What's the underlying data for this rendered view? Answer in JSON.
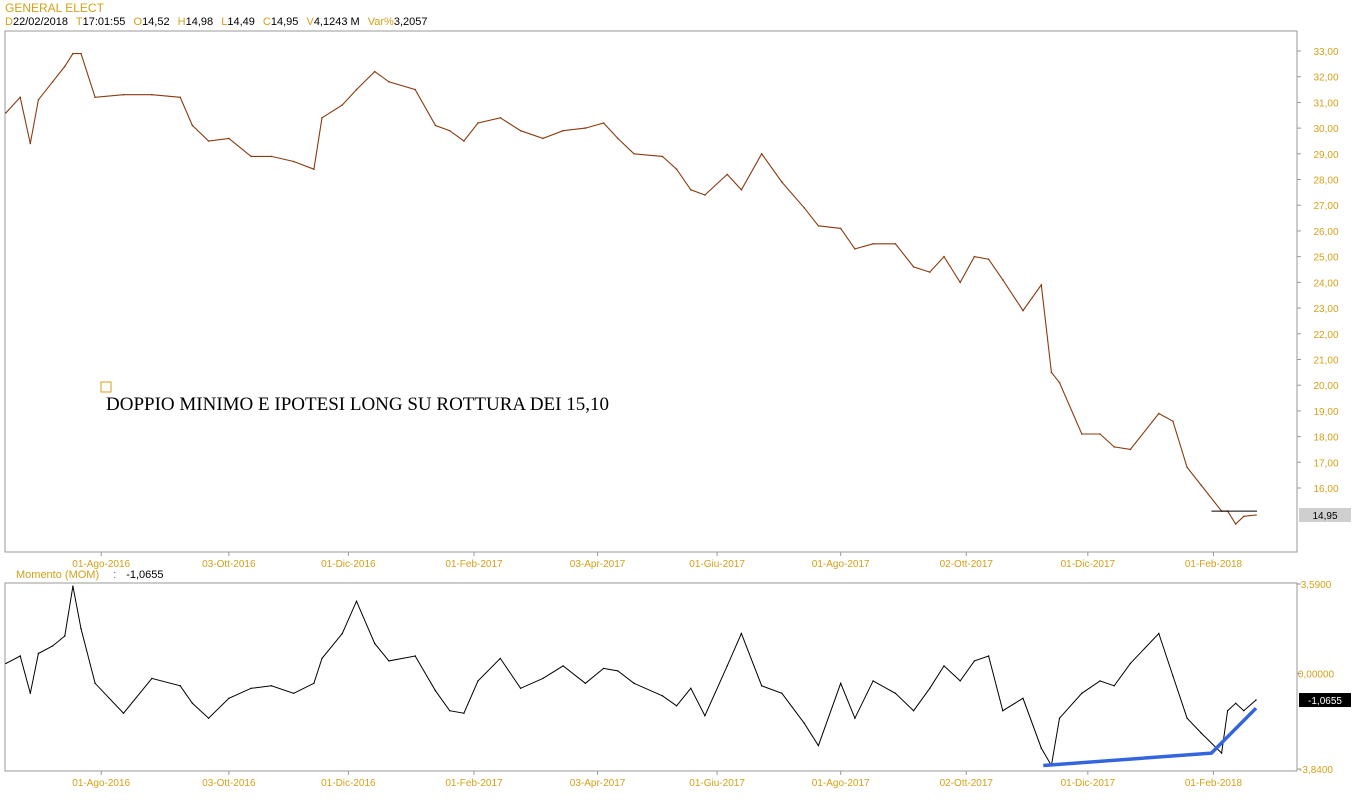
{
  "header": {
    "symbol": "GENERAL ELECT",
    "fields": [
      {
        "key": "D",
        "value": "22/02/2018"
      },
      {
        "key": "T",
        "value": "17:01:55"
      },
      {
        "key": "O",
        "value": "14,52"
      },
      {
        "key": "H",
        "value": "14,98"
      },
      {
        "key": "L",
        "value": "14,49"
      },
      {
        "key": "C",
        "value": "14,95"
      },
      {
        "key": "V",
        "value": "4,1243 M"
      },
      {
        "key": "Var%",
        "value": "3,2057"
      }
    ]
  },
  "colors": {
    "price_line": "#8b3a0f",
    "momentum_line": "#000000",
    "trendline": "#3366dd",
    "axis_label": "#d4a017",
    "frame": "#999999"
  },
  "annotation": {
    "text": "DOPPIO MINIMO E IPOTESI LONG SU ROTTURA DEI 15,10"
  },
  "momentum_header": {
    "label": "Momento (MOM)",
    "separator": ":",
    "value": "-1,0655"
  },
  "chart_data": [
    {
      "type": "line",
      "title": "GENERAL ELECT",
      "ylim": [
        14,
        33.6
      ],
      "y_axis_side": "right",
      "y_tick_labels": [
        "16,00",
        "17,00",
        "18,00",
        "19,00",
        "20,00",
        "21,00",
        "22,00",
        "23,00",
        "24,00",
        "25,00",
        "26,00",
        "27,00",
        "28,00",
        "29,00",
        "30,00",
        "31,00",
        "32,00",
        "33,00"
      ],
      "x_tick_labels": [
        "01-Ago-2016",
        "03-Ott-2016",
        "01-Dic-2016",
        "01-Feb-2017",
        "03-Apr-2017",
        "01-Giu-2017",
        "01-Ago-2017",
        "02-Ott-2017",
        "01-Dic-2017",
        "01-Feb-2018"
      ],
      "last_value_label": "14,95",
      "resistance_level": 15.1,
      "series": [
        {
          "x": [
            "2016-06-15",
            "2016-06-22",
            "2016-06-27",
            "2016-07-01",
            "2016-07-08",
            "2016-07-14",
            "2016-07-18",
            "2016-07-22",
            "2016-07-29",
            "2016-08-12",
            "2016-08-26",
            "2016-09-09",
            "2016-09-15",
            "2016-09-23",
            "2016-10-03",
            "2016-10-14",
            "2016-10-24",
            "2016-11-04",
            "2016-11-14",
            "2016-11-18",
            "2016-11-28",
            "2016-12-05",
            "2016-12-14",
            "2016-12-21",
            "2017-01-03",
            "2017-01-13",
            "2017-01-20",
            "2017-01-27",
            "2017-02-03",
            "2017-02-14",
            "2017-02-24",
            "2017-03-07",
            "2017-03-17",
            "2017-03-28",
            "2017-04-06",
            "2017-04-13",
            "2017-04-21",
            "2017-05-05",
            "2017-05-12",
            "2017-05-19",
            "2017-05-26",
            "2017-06-06",
            "2017-06-13",
            "2017-06-23",
            "2017-07-03",
            "2017-07-14",
            "2017-07-21",
            "2017-08-01",
            "2017-08-08",
            "2017-08-17",
            "2017-08-28",
            "2017-09-06",
            "2017-09-14",
            "2017-09-21",
            "2017-09-29",
            "2017-10-06",
            "2017-10-13",
            "2017-10-20",
            "2017-10-30",
            "2017-11-08",
            "2017-11-13",
            "2017-11-17",
            "2017-11-28",
            "2017-12-07",
            "2017-12-14",
            "2017-12-22",
            "2018-01-05",
            "2018-01-12",
            "2018-01-19",
            "2018-01-26",
            "2018-02-05",
            "2018-02-08",
            "2018-02-12",
            "2018-02-16",
            "2018-02-22"
          ],
          "y": [
            30.6,
            31.2,
            29.4,
            31.1,
            31.8,
            32.4,
            32.9,
            32.9,
            31.2,
            31.3,
            31.3,
            31.2,
            30.1,
            29.5,
            29.6,
            28.9,
            28.9,
            28.7,
            28.4,
            30.4,
            30.9,
            31.5,
            32.2,
            31.8,
            31.5,
            30.1,
            29.9,
            29.5,
            30.2,
            30.4,
            29.9,
            29.6,
            29.9,
            30.0,
            30.2,
            29.6,
            29.0,
            28.9,
            28.4,
            27.6,
            27.4,
            28.2,
            27.6,
            29.0,
            27.9,
            26.9,
            26.2,
            26.1,
            25.3,
            25.5,
            25.5,
            24.6,
            24.4,
            25.0,
            24.0,
            25.0,
            24.9,
            24.1,
            22.9,
            23.9,
            20.5,
            20.1,
            18.1,
            18.1,
            17.6,
            17.5,
            18.9,
            18.6,
            16.8,
            16.1,
            15.1,
            15.1,
            14.6,
            14.9,
            14.95
          ]
        }
      ]
    },
    {
      "type": "line",
      "title": "Momento (MOM)",
      "ylim": [
        -3.84,
        3.59
      ],
      "y_axis_side": "right",
      "y_tick_labels": [
        "3,5900",
        "0,00000",
        "-3,8400"
      ],
      "x_tick_labels": [
        "01-Ago-2016",
        "03-Ott-2016",
        "01-Dic-2016",
        "01-Feb-2017",
        "03-Apr-2017",
        "01-Giu-2017",
        "01-Ago-2017",
        "02-Ott-2017",
        "01-Dic-2017",
        "01-Feb-2018"
      ],
      "last_value_label": "-1,0655",
      "trendlines": [
        {
          "x": [
            "2017-11-09",
            "2018-01-31",
            "2018-02-22"
          ],
          "y": [
            -3.7,
            -3.2,
            -1.4
          ]
        }
      ],
      "series": [
        {
          "x": [
            "2016-06-15",
            "2016-06-22",
            "2016-06-27",
            "2016-07-01",
            "2016-07-08",
            "2016-07-14",
            "2016-07-18",
            "2016-07-22",
            "2016-07-29",
            "2016-08-12",
            "2016-08-26",
            "2016-09-09",
            "2016-09-15",
            "2016-09-23",
            "2016-10-03",
            "2016-10-14",
            "2016-10-24",
            "2016-11-04",
            "2016-11-14",
            "2016-11-18",
            "2016-11-28",
            "2016-12-05",
            "2016-12-14",
            "2016-12-21",
            "2017-01-03",
            "2017-01-13",
            "2017-01-20",
            "2017-01-27",
            "2017-02-03",
            "2017-02-14",
            "2017-02-24",
            "2017-03-07",
            "2017-03-17",
            "2017-03-28",
            "2017-04-06",
            "2017-04-13",
            "2017-04-21",
            "2017-05-05",
            "2017-05-12",
            "2017-05-19",
            "2017-05-26",
            "2017-06-06",
            "2017-06-13",
            "2017-06-23",
            "2017-07-03",
            "2017-07-14",
            "2017-07-21",
            "2017-08-01",
            "2017-08-08",
            "2017-08-17",
            "2017-08-28",
            "2017-09-06",
            "2017-09-14",
            "2017-09-21",
            "2017-09-29",
            "2017-10-06",
            "2017-10-13",
            "2017-10-20",
            "2017-10-30",
            "2017-11-08",
            "2017-11-13",
            "2017-11-17",
            "2017-11-28",
            "2017-12-07",
            "2017-12-14",
            "2017-12-22",
            "2018-01-05",
            "2018-01-12",
            "2018-01-19",
            "2018-01-26",
            "2018-02-05",
            "2018-02-08",
            "2018-02-12",
            "2018-02-16",
            "2018-02-22"
          ],
          "y": [
            0.4,
            0.7,
            -0.8,
            0.8,
            1.1,
            1.5,
            3.5,
            1.8,
            -0.4,
            -1.6,
            -0.2,
            -0.5,
            -1.2,
            -1.8,
            -1.0,
            -0.6,
            -0.5,
            -0.8,
            -0.4,
            0.6,
            1.6,
            2.9,
            1.2,
            0.5,
            0.7,
            -0.7,
            -1.5,
            -1.6,
            -0.3,
            0.6,
            -0.6,
            -0.2,
            0.3,
            -0.4,
            0.2,
            0.1,
            -0.4,
            -0.9,
            -1.3,
            -0.6,
            -1.7,
            0.3,
            1.6,
            -0.5,
            -0.8,
            -2.0,
            -2.9,
            -0.4,
            -1.8,
            -0.3,
            -0.8,
            -1.5,
            -0.6,
            0.3,
            -0.3,
            0.5,
            0.7,
            -1.5,
            -1.0,
            -3.0,
            -3.7,
            -1.8,
            -0.8,
            -0.3,
            -0.5,
            0.4,
            1.6,
            -0.1,
            -1.8,
            -2.4,
            -3.2,
            -1.5,
            -1.2,
            -1.5,
            -1.07
          ]
        }
      ]
    }
  ]
}
